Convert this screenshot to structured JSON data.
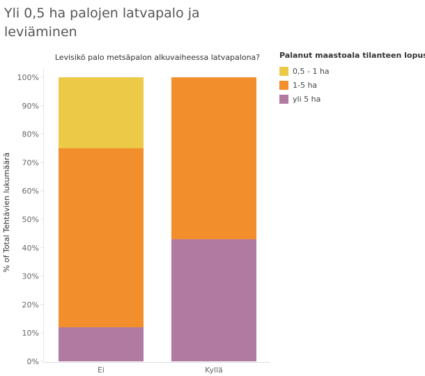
{
  "page": {
    "title": "Yli 0,5 ha palojen latvapalo ja leviäminen"
  },
  "chart_data": {
    "type": "bar",
    "stacked": true,
    "title": "Levisikö palo metsäpalon alkuvaiheessa latvapalona?",
    "xlabel": "Levisikö palo metsäpalon alkuvaiheessa latvapalona?",
    "ylabel": "% of Total Tehtävien lukumäärä",
    "categories": [
      "Ei",
      "Kyllä"
    ],
    "ylim": [
      0,
      100
    ],
    "yticks": [
      "0%",
      "10%",
      "20%",
      "30%",
      "40%",
      "50%",
      "60%",
      "70%",
      "80%",
      "90%",
      "100%"
    ],
    "grid": false,
    "legend_position": "top-right",
    "legend_title": "Palanut maastoala tilanteen lopussa",
    "series": [
      {
        "name": "yli 5 ha",
        "color": "#b07aa1",
        "values": [
          12,
          43
        ]
      },
      {
        "name": "1-5 ha",
        "color": "#f28e2b",
        "values": [
          63,
          57
        ]
      },
      {
        "name": "0,5 - 1 ha",
        "color": "#edc948",
        "values": [
          25,
          0
        ]
      }
    ],
    "legend_order": [
      "0,5 - 1 ha",
      "1-5 ha",
      "yli 5 ha"
    ]
  }
}
